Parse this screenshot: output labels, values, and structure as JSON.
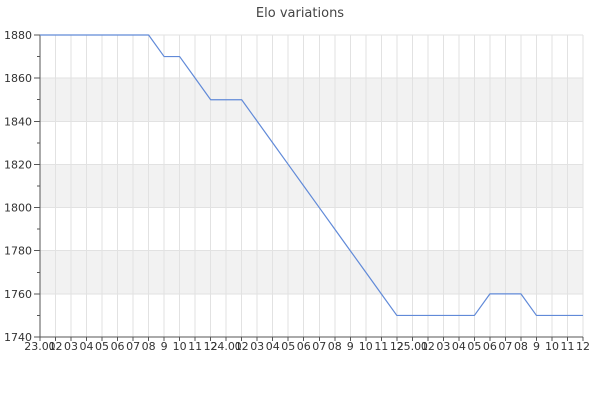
{
  "chart_data": {
    "type": "line",
    "title": "Elo variations",
    "x_labels": [
      "23.01",
      "02",
      "03",
      "04",
      "05",
      "06",
      "07",
      "08",
      "9",
      "10",
      "11",
      "12",
      "24.01",
      "02",
      "03",
      "04",
      "05",
      "06",
      "07",
      "08",
      "9",
      "10",
      "11",
      "12",
      "25.01",
      "02",
      "03",
      "04",
      "05",
      "06",
      "07",
      "08",
      "9",
      "10",
      "11",
      "12"
    ],
    "values": [
      1880,
      1880,
      1880,
      1880,
      1880,
      1880,
      1880,
      1880,
      1870,
      1870,
      1860,
      1850,
      1850,
      1850,
      1840,
      1830,
      1820,
      1810,
      1800,
      1790,
      1780,
      1770,
      1760,
      1750,
      1750,
      1750,
      1750,
      1750,
      1750,
      1760,
      1760,
      1760,
      1750,
      1750,
      1750,
      1750
    ],
    "ylim": [
      1740,
      1880
    ],
    "y_major_step": 20,
    "y_minor_step": 10,
    "y_tick_labels": [
      "1740",
      "1760",
      "1780",
      "1800",
      "1820",
      "1840",
      "1860",
      "1880"
    ],
    "grid": true,
    "legend_position": "none",
    "series_name": "Elo",
    "colors": {
      "line": "#618ad8",
      "band": "#f2f2f2",
      "grid": "#e2e2e2",
      "axis": "#555555",
      "text": "#333333",
      "title": "#444444",
      "background": "#ffffff"
    }
  }
}
